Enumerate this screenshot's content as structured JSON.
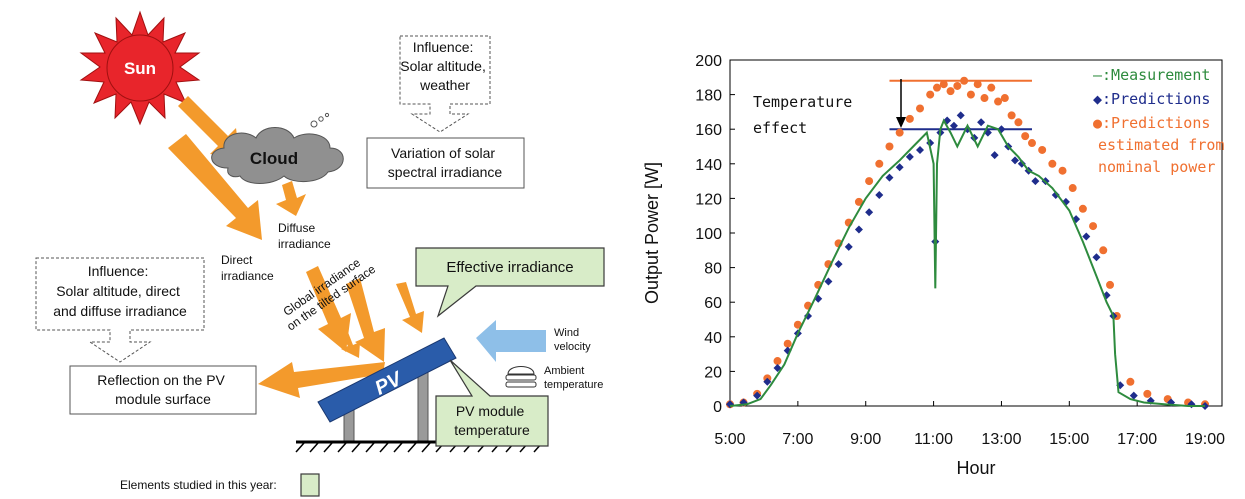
{
  "diagram": {
    "sun_label": "Sun",
    "cloud_label": "Cloud",
    "influence_weather": [
      "Influence:",
      "Solar altitude,",
      "weather"
    ],
    "variation_box": [
      "Variation of solar",
      "spectral irradiance"
    ],
    "diffuse_label": [
      "Diffuse",
      "irradiance"
    ],
    "direct_label": [
      "Direct",
      "irradiance"
    ],
    "influence_irradiance": [
      "Influence:",
      "Solar altitude, direct",
      "and diffuse irradiance"
    ],
    "global_irradiance": [
      "Global irradiance",
      "on the tilted surface"
    ],
    "effective_irradiance": "Effective irradiance",
    "pv_label": "PV",
    "wind_label": [
      "Wind",
      "velocity"
    ],
    "ambient_label": [
      "Ambient",
      "temperature"
    ],
    "reflection_box": [
      "Reflection on the PV",
      "module surface"
    ],
    "module_temp_box": [
      "PV module",
      "temperature"
    ],
    "legend_text": "Elements studied in this year:",
    "colors": {
      "sun": "#e8252b",
      "arrow": "#f39a2c",
      "cloud": "#909090",
      "green_box": "#d8ecc8",
      "green_border": "#3a3a3a",
      "pv": "#2a5caa",
      "wind": "#8ebfe8"
    }
  },
  "chart_data": {
    "type": "scatter",
    "xlabel": "Hour",
    "ylabel": "Output Power  [W]",
    "x_ticks": [
      "5:00",
      "7:00",
      "9:00",
      "11:00",
      "13:00",
      "15:00",
      "17:00",
      "19:00"
    ],
    "xlim": [
      5,
      19.5
    ],
    "ylim": [
      0,
      200
    ],
    "y_ticks": [
      "0",
      "20",
      "40",
      "60",
      "80",
      "100",
      "120",
      "140",
      "160",
      "180",
      "200"
    ],
    "annotation": [
      "Temperature",
      "effect"
    ],
    "legend": [
      {
        "marker": "—",
        "label": ":Measurement",
        "color": "#2e8b3e"
      },
      {
        "marker": "◆",
        "label": ":Predictions",
        "color": "#1f2d8c"
      },
      {
        "marker": "●",
        "label": ":Predictions",
        "color": "#f07030"
      },
      {
        "marker": "",
        "label": "estimated from",
        "color": "#f07030"
      },
      {
        "marker": "",
        "label": "nominal power",
        "color": "#f07030"
      }
    ],
    "reference_lines": [
      {
        "y": 188,
        "x_range": [
          9.7,
          13.9
        ],
        "color": "#f07030"
      },
      {
        "y": 160,
        "x_range": [
          9.7,
          13.9
        ],
        "color": "#1f2d8c"
      }
    ],
    "series": [
      {
        "name": ":Measurement",
        "style": "line",
        "color": "#2e8b3e",
        "x": [
          5.0,
          5.5,
          5.9,
          6.2,
          6.6,
          7.0,
          7.5,
          8.0,
          8.5,
          9.0,
          9.5,
          10.0,
          10.4,
          10.8,
          11.0,
          11.05,
          11.1,
          11.2,
          11.3,
          11.5,
          11.7,
          12.0,
          12.3,
          12.6,
          12.9,
          13.2,
          13.5,
          13.8,
          14.1,
          14.5,
          15.0,
          15.4,
          15.8,
          16.1,
          16.3,
          16.35,
          16.45,
          16.8,
          17.2,
          17.8,
          18.5,
          19.0
        ],
        "y": [
          0,
          1,
          4,
          12,
          24,
          42,
          62,
          83,
          103,
          120,
          133,
          142,
          150,
          158,
          140,
          68,
          140,
          160,
          165,
          158,
          150,
          162,
          150,
          162,
          160,
          150,
          144,
          136,
          133,
          126,
          113,
          95,
          75,
          60,
          52,
          30,
          8,
          4,
          2,
          1,
          0,
          0
        ]
      },
      {
        "name": ":Predictions",
        "style": "diamond",
        "color": "#1f2d8c",
        "x": [
          5.0,
          5.4,
          5.8,
          6.1,
          6.4,
          6.7,
          7.0,
          7.3,
          7.6,
          7.9,
          8.2,
          8.5,
          8.8,
          9.1,
          9.4,
          9.7,
          10.0,
          10.3,
          10.6,
          10.9,
          11.05,
          11.2,
          11.4,
          11.6,
          11.8,
          12.0,
          12.2,
          12.4,
          12.6,
          12.8,
          13.0,
          13.2,
          13.4,
          13.6,
          13.8,
          14.0,
          14.3,
          14.6,
          14.9,
          15.2,
          15.5,
          15.8,
          16.1,
          16.3,
          16.5,
          16.9,
          17.4,
          18.0,
          18.6,
          19.0
        ],
        "y": [
          1,
          2,
          6,
          14,
          22,
          32,
          42,
          52,
          62,
          72,
          82,
          92,
          102,
          112,
          122,
          132,
          138,
          144,
          148,
          152,
          95,
          158,
          165,
          162,
          168,
          160,
          155,
          164,
          158,
          145,
          160,
          150,
          142,
          140,
          136,
          130,
          130,
          122,
          118,
          108,
          98,
          86,
          64,
          52,
          12,
          6,
          3,
          2,
          1,
          0
        ]
      },
      {
        "name": ":Predictions",
        "style": "circle",
        "color": "#f07030",
        "x": [
          5.0,
          5.4,
          5.8,
          6.1,
          6.4,
          6.7,
          7.0,
          7.3,
          7.6,
          7.9,
          8.2,
          8.5,
          8.8,
          9.1,
          9.4,
          9.7,
          10.0,
          10.3,
          10.6,
          10.9,
          11.1,
          11.3,
          11.5,
          11.7,
          11.9,
          12.1,
          12.3,
          12.5,
          12.7,
          12.9,
          13.1,
          13.3,
          13.5,
          13.7,
          13.9,
          14.2,
          14.5,
          14.8,
          15.1,
          15.4,
          15.7,
          16.0,
          16.2,
          16.4,
          16.8,
          17.3,
          17.9,
          18.5,
          19.0
        ],
        "y": [
          1,
          2,
          7,
          16,
          26,
          36,
          47,
          58,
          70,
          82,
          94,
          106,
          118,
          130,
          140,
          150,
          158,
          166,
          172,
          180,
          184,
          186,
          182,
          185,
          188,
          180,
          186,
          178,
          184,
          176,
          178,
          168,
          164,
          156,
          152,
          148,
          140,
          136,
          126,
          114,
          104,
          90,
          70,
          52,
          14,
          7,
          4,
          2,
          1
        ]
      }
    ]
  }
}
